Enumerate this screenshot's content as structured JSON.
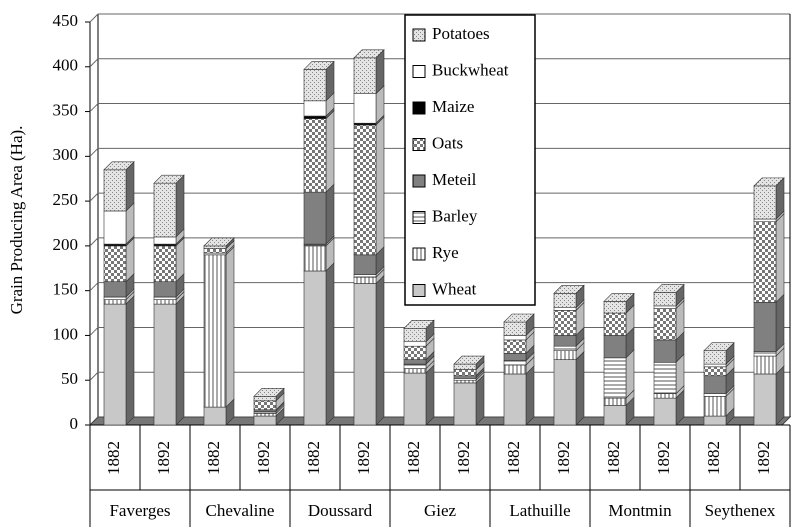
{
  "chart_data": {
    "type": "stacked-bar-3d",
    "y_label": "Grain Producing Area (Ha).",
    "categories": [
      "1882",
      "1892",
      "1882",
      "1892",
      "1882",
      "1892",
      "1882",
      "1892",
      "1882",
      "1892",
      "1882",
      "1892",
      "1882",
      "1892"
    ],
    "groups": [
      "Faverges",
      "Chevaline",
      "Doussard",
      "Giez",
      "Lathuille",
      "Montmin",
      "Seythenex"
    ],
    "series": [
      {
        "name": "Wheat",
        "color": "#c8c8c8",
        "values": [
          135,
          135,
          20,
          10,
          172,
          158,
          58,
          47,
          57,
          73,
          22,
          30,
          10,
          57
        ]
      },
      {
        "name": "Rye",
        "color": "#ffffff",
        "pattern": "vertical-lines",
        "values": [
          5,
          5,
          170,
          3,
          28,
          7,
          5,
          3,
          10,
          10,
          8,
          5,
          22,
          20
        ]
      },
      {
        "name": "Barley",
        "color": "#ffffff",
        "pattern": "horizontal-lines",
        "values": [
          3,
          3,
          2,
          2,
          2,
          3,
          5,
          2,
          5,
          5,
          45,
          35,
          3,
          5
        ]
      },
      {
        "name": "Meteil",
        "color": "#808080",
        "values": [
          17,
          17,
          0,
          2,
          58,
          22,
          5,
          3,
          8,
          12,
          25,
          25,
          20,
          55
        ]
      },
      {
        "name": "Oats",
        "color": "#ffffff",
        "pattern": "checks",
        "values": [
          40,
          40,
          5,
          10,
          82,
          145,
          15,
          7,
          15,
          28,
          25,
          35,
          10,
          90
        ]
      },
      {
        "name": "Maize",
        "color": "#000000",
        "values": [
          2,
          2,
          0,
          0,
          3,
          2,
          0,
          0,
          0,
          0,
          0,
          0,
          0,
          0
        ]
      },
      {
        "name": "Buckwheat",
        "color": "#ffffff",
        "values": [
          37,
          8,
          0,
          0,
          17,
          33,
          5,
          0,
          5,
          3,
          0,
          3,
          3,
          3
        ]
      },
      {
        "name": "Potatoes",
        "color": "#e4e4e4",
        "pattern": "dots",
        "values": [
          46,
          60,
          3,
          5,
          35,
          40,
          15,
          6,
          15,
          16,
          13,
          15,
          15,
          37
        ]
      }
    ],
    "ylim": [
      0,
      450
    ],
    "yticks": [
      0,
      50,
      100,
      150,
      200,
      250,
      300,
      350,
      400,
      450
    ],
    "grid": true
  }
}
